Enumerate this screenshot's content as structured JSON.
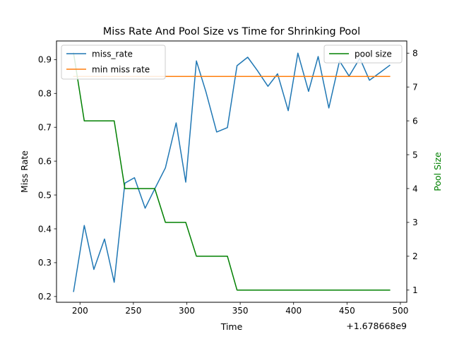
{
  "chart_data": {
    "type": "line",
    "title": "Miss Rate And Pool Size vs Time for Shrinking Pool",
    "xlabel": "Time",
    "x_offset_label": "+1.678668e9",
    "ylabel_left": "Miss Rate",
    "ylabel_right": "Pool Size",
    "xlim": [
      178,
      506
    ],
    "ylim_left": [
      0.183,
      0.955
    ],
    "ylim_right": [
      0.64,
      8.36
    ],
    "x_ticks": [
      200,
      250,
      300,
      350,
      400,
      450,
      500
    ],
    "y_ticks_left": [
      0.2,
      0.3,
      0.4,
      0.5,
      0.6,
      0.7,
      0.8,
      0.9
    ],
    "y_ticks_right": [
      1,
      2,
      3,
      4,
      5,
      6,
      7,
      8
    ],
    "grid": false,
    "legend_left_placement": "upper-left",
    "legend_right_placement": "upper-right",
    "series": [
      {
        "name": "miss_rate",
        "axis": "left",
        "color": "#1f77b4",
        "x": [
          194,
          204,
          213,
          223,
          232,
          242,
          251,
          261,
          270,
          280,
          290,
          299,
          309,
          318,
          328,
          338,
          347,
          357,
          366,
          376,
          385,
          395,
          404,
          414,
          423,
          433,
          443,
          452,
          462,
          471,
          481,
          490
        ],
        "values": [
          0.215,
          0.41,
          0.28,
          0.37,
          0.242,
          0.535,
          0.551,
          0.461,
          0.518,
          0.58,
          0.713,
          0.538,
          0.896,
          0.804,
          0.686,
          0.699,
          0.882,
          0.907,
          0.868,
          0.821,
          0.858,
          0.749,
          0.919,
          0.806,
          0.909,
          0.757,
          0.896,
          0.851,
          0.904,
          0.839,
          0.862,
          0.883
        ]
      },
      {
        "name": "min miss rate",
        "axis": "left",
        "color": "#ff7f0e",
        "x": [
          194,
          490
        ],
        "values": [
          0.85,
          0.85
        ]
      },
      {
        "name": "pool size",
        "axis": "right",
        "color": "#008000",
        "x": [
          194,
          204,
          213,
          223,
          232,
          242,
          251,
          261,
          270,
          280,
          290,
          299,
          309,
          318,
          328,
          338,
          347,
          357,
          366,
          376,
          385,
          395,
          404,
          414,
          423,
          433,
          443,
          452,
          462,
          471,
          481,
          490
        ],
        "values": [
          8,
          6,
          6,
          6,
          6,
          4,
          4,
          4,
          4,
          3,
          3,
          3,
          2,
          2,
          2,
          2,
          1,
          1,
          1,
          1,
          1,
          1,
          1,
          1,
          1,
          1,
          1,
          1,
          1,
          1,
          1,
          1
        ]
      }
    ]
  }
}
